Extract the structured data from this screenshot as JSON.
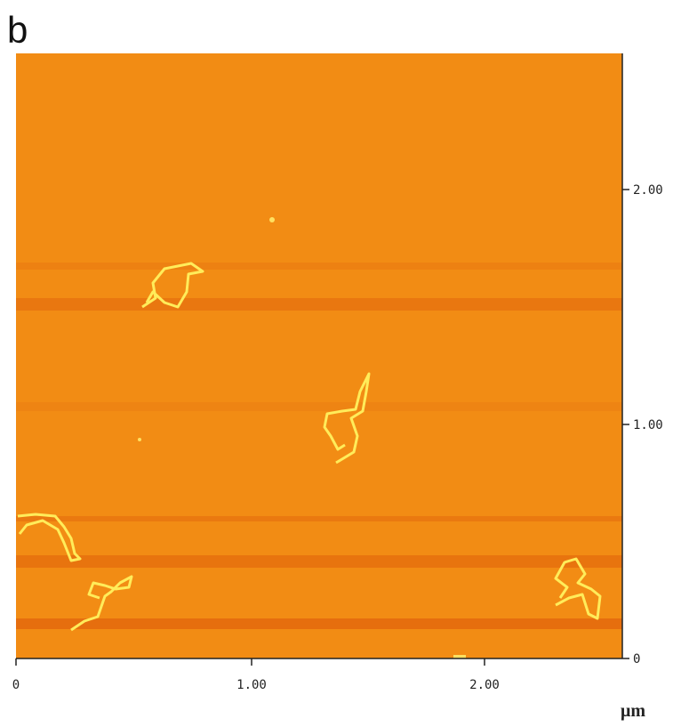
{
  "panel_label": "b",
  "x_axis": {
    "ticks": [
      "0",
      "1.00",
      "2.00"
    ],
    "unit": "μm"
  },
  "y_axis": {
    "ticks": [
      "0",
      "1.00",
      "2.00"
    ]
  }
}
